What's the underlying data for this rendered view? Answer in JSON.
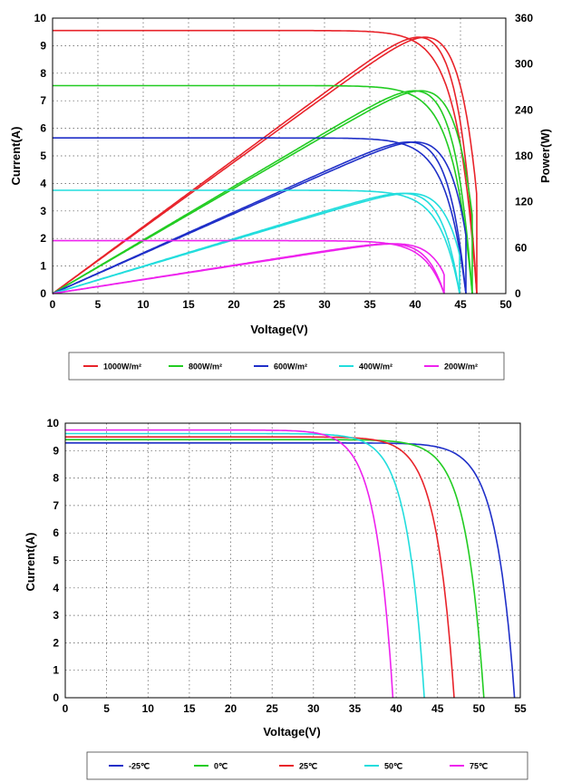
{
  "chart_data": [
    {
      "type": "line",
      "xlabel": "Voltage(V)",
      "ylabel": "Current(A)",
      "y2label": "Power(W)",
      "xlim": [
        0,
        50
      ],
      "ylim": [
        0,
        10
      ],
      "y2lim": [
        0,
        360
      ],
      "xticks": [
        "0",
        "5",
        "10",
        "15",
        "20",
        "25",
        "30",
        "35",
        "40",
        "45",
        "50"
      ],
      "yticks": [
        "0",
        "1",
        "2",
        "3",
        "4",
        "5",
        "6",
        "7",
        "8",
        "9",
        "10"
      ],
      "y2ticks": [
        "0",
        "60",
        "120",
        "180",
        "240",
        "300",
        "360"
      ],
      "grid": true,
      "legend_position": "bottom",
      "series": [
        {
          "name": "1000W/m²",
          "color": "#e8232a",
          "isc": 9.55,
          "voc": 46.8,
          "pmax": 335
        },
        {
          "name": "800W/m²",
          "color": "#22cc22",
          "isc": 7.55,
          "voc": 46.3,
          "pmax": 265
        },
        {
          "name": "600W/m²",
          "color": "#1f2fc8",
          "isc": 5.65,
          "voc": 45.6,
          "pmax": 198
        },
        {
          "name": "400W/m²",
          "color": "#22dddd",
          "isc": 3.75,
          "voc": 44.9,
          "pmax": 131
        },
        {
          "name": "200W/m²",
          "color": "#ee22ee",
          "isc": 1.92,
          "voc": 43.2,
          "pmax": 65
        }
      ]
    },
    {
      "type": "line",
      "xlabel": "Voltage(V)",
      "ylabel": "Current(A)",
      "xlim": [
        0,
        55
      ],
      "ylim": [
        0,
        10
      ],
      "xticks": [
        "0",
        "5",
        "10",
        "15",
        "20",
        "25",
        "30",
        "35",
        "40",
        "45",
        "50",
        "55"
      ],
      "yticks": [
        "0",
        "1",
        "2",
        "3",
        "4",
        "5",
        "6",
        "7",
        "8",
        "9",
        "10"
      ],
      "grid": true,
      "legend_position": "bottom",
      "series": [
        {
          "name": "-25℃",
          "color": "#1f2fc8",
          "isc": 9.28,
          "voc": 54.3
        },
        {
          "name": "0℃",
          "color": "#22cc22",
          "isc": 9.4,
          "voc": 50.6
        },
        {
          "name": "25℃",
          "color": "#e8232a",
          "isc": 9.5,
          "voc": 47.0
        },
        {
          "name": "50℃",
          "color": "#22dddd",
          "isc": 9.62,
          "voc": 43.4
        },
        {
          "name": "75℃",
          "color": "#ee22ee",
          "isc": 9.75,
          "voc": 39.6
        }
      ]
    }
  ]
}
